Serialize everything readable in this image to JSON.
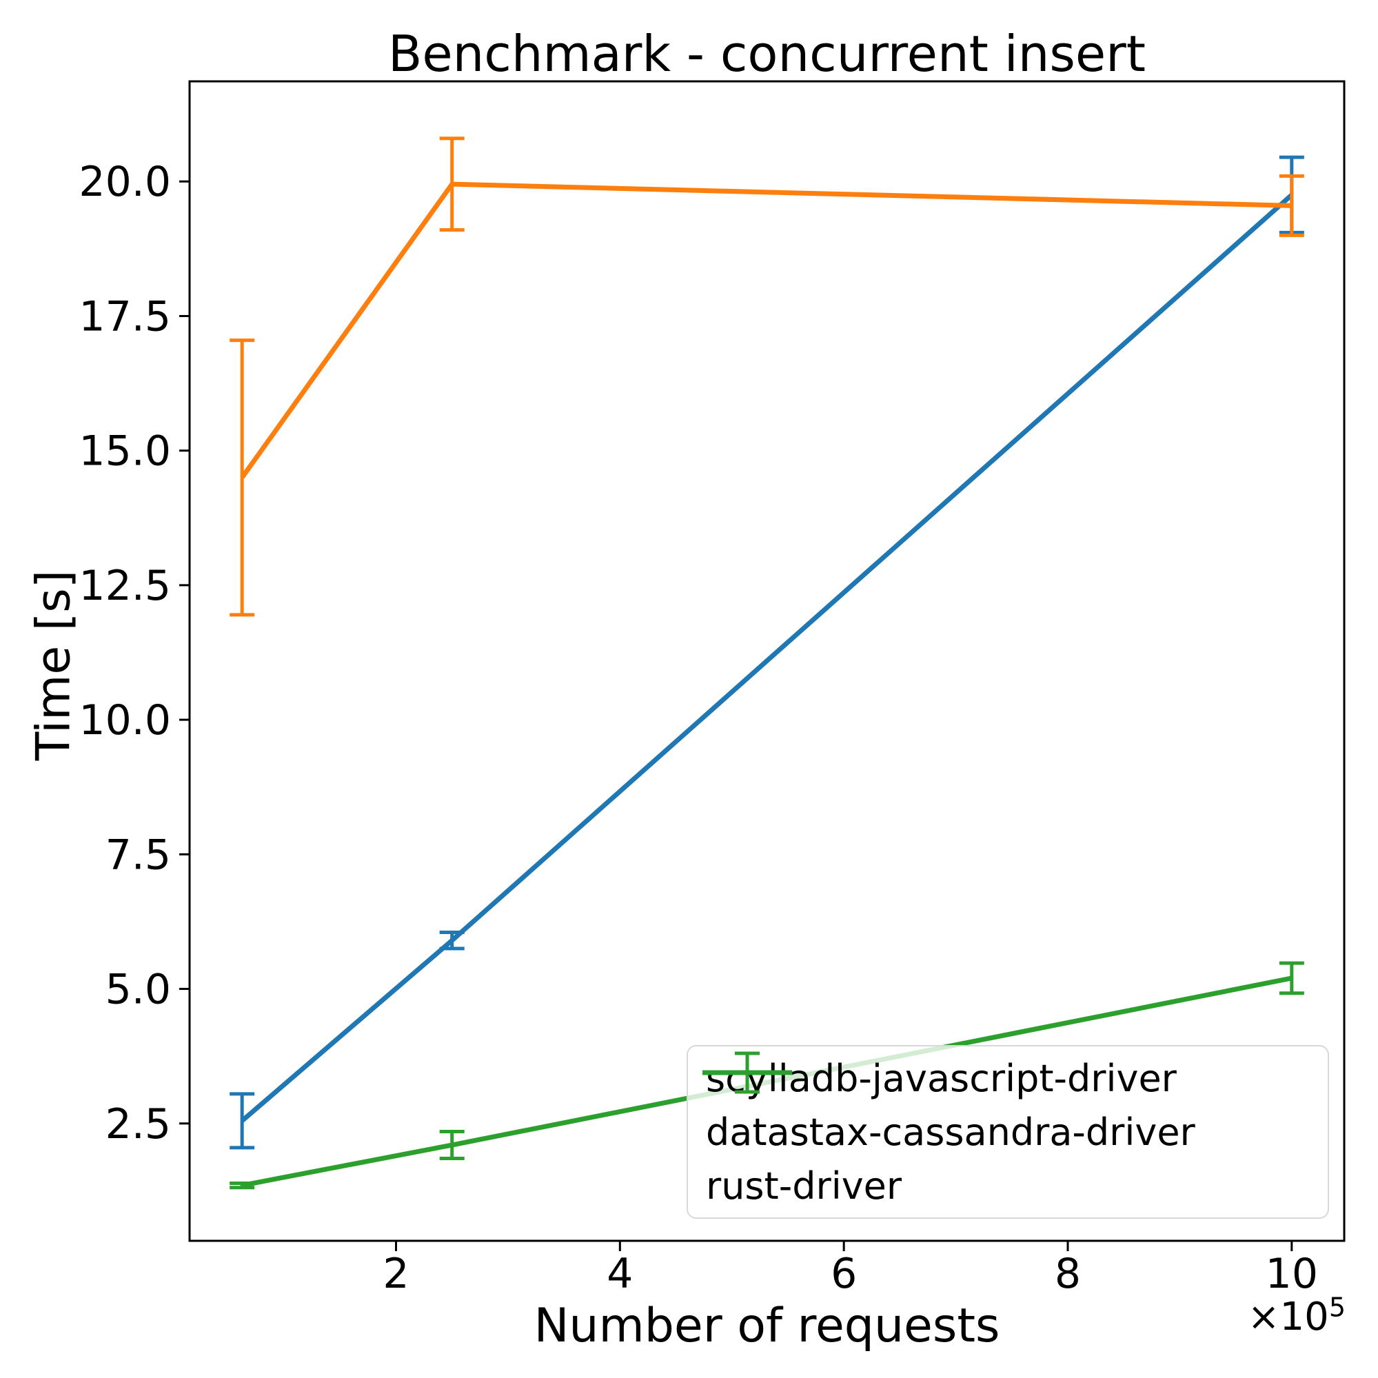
{
  "chart_data": {
    "type": "line",
    "title": "Benchmark - concurrent insert",
    "xlabel": "Number of requests",
    "ylabel": "Time [s]",
    "offset_text": "×10⁵",
    "offset_base": "×10",
    "offset_exponent": "5",
    "x_requests": [
      62500,
      250000,
      1000000
    ],
    "x": [
      0.625,
      2.5,
      10
    ],
    "x_ticks": [
      2,
      4,
      6,
      8,
      10
    ],
    "x_tick_labels": [
      "2",
      "4",
      "6",
      "8",
      "10"
    ],
    "y_ticks": [
      2.5,
      5.0,
      7.5,
      10.0,
      12.5,
      15.0,
      17.5,
      20.0
    ],
    "y_tick_labels": [
      "2.5",
      "5.0",
      "7.5",
      "10.0",
      "12.5",
      "15.0",
      "17.5",
      "20.0"
    ],
    "xlim": [
      0.156,
      10.469
    ],
    "ylim": [
      0.32,
      21.86
    ],
    "grid": false,
    "legend_position": "lower right",
    "background_color": "#ffffff",
    "spine_color": "#000000",
    "series": [
      {
        "name": "scylladb-javascript-driver",
        "color": "#1f77b4",
        "values": [
          2.55,
          5.9,
          19.75
        ],
        "yerr": [
          0.5,
          0.15,
          0.7
        ]
      },
      {
        "name": "datastax-cassandra-driver",
        "color": "#ff7f0e",
        "values": [
          14.5,
          19.95,
          19.55
        ],
        "yerr": [
          2.55,
          0.85,
          0.55
        ]
      },
      {
        "name": "rust-driver",
        "color": "#2ca02c",
        "values": [
          1.35,
          2.1,
          5.2
        ],
        "yerr": [
          0.04,
          0.25,
          0.28
        ]
      }
    ]
  }
}
